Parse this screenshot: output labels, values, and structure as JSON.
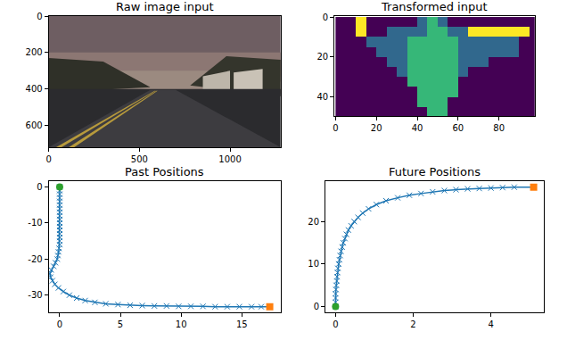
{
  "chart_data": [
    {
      "type": "image",
      "title": "Raw image input",
      "xlim": [
        -0.5,
        1279.5
      ],
      "ylim": [
        719.5,
        -0.5
      ],
      "xticks": [
        0,
        500,
        1000
      ],
      "yticks": [
        0,
        200,
        400,
        600
      ]
    },
    {
      "type": "heatmap",
      "title": "Transformed input",
      "x": [
        2.5,
        7.5,
        12.5,
        17.5,
        22.5,
        27.5,
        32.5,
        37.5,
        42.5,
        47.5,
        52.5,
        57.5,
        62.5,
        67.5,
        72.5,
        77.5,
        82.5,
        87.5,
        92.5,
        97.5
      ],
      "y": [
        2.5,
        7.5,
        12.5,
        17.5,
        22.5,
        27.5,
        32.5,
        37.5,
        42.5,
        47.5
      ],
      "cells": [
        [
          0,
          0,
          3,
          0,
          0,
          0,
          0,
          0,
          1,
          2,
          1,
          0,
          0,
          0,
          0,
          0,
          0,
          0,
          0,
          0
        ],
        [
          0,
          0,
          3,
          0,
          0,
          1,
          1,
          1,
          1,
          2,
          2,
          1,
          1,
          3,
          3,
          3,
          3,
          3,
          3,
          0
        ],
        [
          0,
          0,
          0,
          1,
          1,
          1,
          1,
          2,
          2,
          2,
          2,
          2,
          1,
          1,
          1,
          1,
          1,
          1,
          0,
          0
        ],
        [
          0,
          0,
          0,
          0,
          1,
          1,
          1,
          2,
          2,
          2,
          2,
          2,
          1,
          1,
          1,
          1,
          1,
          1,
          0,
          0
        ],
        [
          0,
          0,
          0,
          0,
          0,
          1,
          1,
          2,
          2,
          2,
          2,
          2,
          1,
          1,
          1,
          0,
          0,
          0,
          0,
          0
        ],
        [
          0,
          0,
          0,
          0,
          0,
          0,
          1,
          2,
          2,
          2,
          2,
          2,
          1,
          0,
          0,
          0,
          0,
          0,
          0,
          0
        ],
        [
          0,
          0,
          0,
          0,
          0,
          0,
          0,
          2,
          2,
          2,
          2,
          2,
          0,
          0,
          0,
          0,
          0,
          0,
          0,
          0
        ],
        [
          0,
          0,
          0,
          0,
          0,
          0,
          0,
          0,
          2,
          2,
          2,
          2,
          0,
          0,
          0,
          0,
          0,
          0,
          0,
          0
        ],
        [
          0,
          0,
          0,
          0,
          0,
          0,
          0,
          0,
          2,
          2,
          2,
          0,
          0,
          0,
          0,
          0,
          0,
          0,
          0,
          0
        ],
        [
          0,
          0,
          0,
          0,
          0,
          0,
          0,
          0,
          0,
          2,
          2,
          0,
          0,
          0,
          0,
          0,
          0,
          0,
          0,
          0
        ]
      ],
      "clim": [
        0,
        3
      ],
      "xlim": [
        -0.5,
        97.5
      ],
      "ylim": [
        49.5,
        -0.5
      ],
      "xticks": [
        0,
        20,
        40,
        60,
        80
      ],
      "yticks": [
        0,
        20,
        40
      ]
    },
    {
      "type": "line",
      "title": "Past Positions",
      "color": "#1f77b4",
      "marker": "x",
      "x": [
        0,
        0,
        0,
        0,
        0,
        0,
        0,
        0,
        0,
        0,
        0,
        0,
        0,
        0,
        0,
        0,
        0,
        -0.05,
        -0.1,
        -0.15,
        -0.2,
        -0.35,
        -0.5,
        -0.7,
        -0.8,
        -0.75,
        -0.6,
        -0.4,
        -0.1,
        0.3,
        0.8,
        1.4,
        2.1,
        2.9,
        3.8,
        4.8,
        5.8,
        6.8,
        7.8,
        8.8,
        9.8,
        10.8,
        11.8,
        12.8,
        13.8,
        14.8,
        15.8,
        16.6,
        17.3
      ],
      "y": [
        0,
        -1,
        -2,
        -3,
        -4,
        -5,
        -6,
        -7,
        -8,
        -9,
        -10,
        -11,
        -12,
        -13,
        -14,
        -15,
        -16,
        -17,
        -18,
        -19,
        -20,
        -21,
        -22,
        -23,
        -24,
        -25,
        -26,
        -27,
        -28,
        -29,
        -30,
        -30.8,
        -31.5,
        -32,
        -32.4,
        -32.6,
        -32.8,
        -32.9,
        -33,
        -33,
        -33.1,
        -33.1,
        -33.1,
        -33.2,
        -33.2,
        -33.2,
        -33.2,
        -33.2,
        -33.2
      ],
      "start": {
        "x": 0,
        "y": 0,
        "color": "#2ca02c",
        "marker": "circle"
      },
      "end": {
        "x": 17.3,
        "y": -33.2,
        "color": "#ff7f0e",
        "marker": "square"
      },
      "xlim": [
        -0.9,
        18.2
      ],
      "ylim": [
        -34.8,
        1.6
      ],
      "xticks": [
        0,
        5,
        10,
        15
      ],
      "yticks": [
        0,
        -10,
        -20,
        -30
      ]
    },
    {
      "type": "line",
      "title": "Future Positions",
      "color": "#1f77b4",
      "marker": "x",
      "x": [
        0,
        0,
        0,
        0,
        0.01,
        0.02,
        0.03,
        0.04,
        0.05,
        0.06,
        0.08,
        0.1,
        0.12,
        0.14,
        0.17,
        0.2,
        0.24,
        0.28,
        0.33,
        0.4,
        0.48,
        0.58,
        0.7,
        0.85,
        1.05,
        1.3,
        1.6,
        1.9,
        2.2,
        2.5,
        2.8,
        3.1,
        3.4,
        3.7,
        4.0,
        4.3,
        4.6,
        5.1
      ],
      "y": [
        0,
        1,
        2,
        3,
        4,
        5,
        6,
        7,
        8,
        9,
        10,
        11,
        12,
        13,
        14,
        15,
        16,
        17,
        18,
        19,
        20,
        21,
        22,
        23,
        24,
        24.9,
        25.6,
        26.2,
        26.6,
        27,
        27.3,
        27.5,
        27.7,
        27.8,
        27.9,
        28,
        28.1,
        28.1
      ],
      "start": {
        "x": 0,
        "y": 0,
        "color": "#2ca02c",
        "marker": "circle"
      },
      "end": {
        "x": 5.1,
        "y": 28.1,
        "color": "#ff7f0e",
        "marker": "square"
      },
      "xlim": [
        -0.26,
        5.36
      ],
      "ylim": [
        -1.4,
        29.5
      ],
      "xticks": [
        0,
        2,
        4
      ],
      "yticks": [
        0,
        10,
        20
      ]
    }
  ]
}
